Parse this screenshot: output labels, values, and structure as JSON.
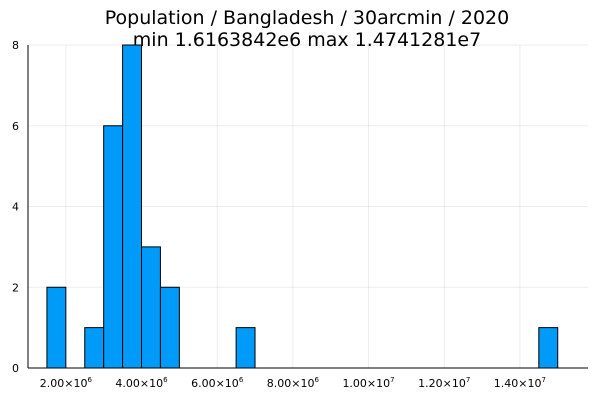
{
  "chart_data": {
    "type": "bar",
    "title_line1": "Population / Bangladesh / 30arcmin / 2020",
    "title_line2": "min 1.6163842e6  max 1.4741281e7",
    "xlabel": "",
    "ylabel": "",
    "bar_color": "#009af9",
    "grid": true,
    "xlim": [
      1000000,
      15800000
    ],
    "ylim": [
      0,
      8
    ],
    "x_ticks": [
      {
        "value": 2000000,
        "mantissa": "2.00",
        "exp": "6"
      },
      {
        "value": 4000000,
        "mantissa": "4.00",
        "exp": "6"
      },
      {
        "value": 6000000,
        "mantissa": "6.00",
        "exp": "6"
      },
      {
        "value": 8000000,
        "mantissa": "8.00",
        "exp": "6"
      },
      {
        "value": 10000000,
        "mantissa": "1.00",
        "exp": "7"
      },
      {
        "value": 12000000,
        "mantissa": "1.20",
        "exp": "7"
      },
      {
        "value": 14000000,
        "mantissa": "1.40",
        "exp": "7"
      }
    ],
    "y_ticks": [
      0,
      2,
      4,
      6,
      8
    ],
    "bin_width": 500000,
    "bins": [
      {
        "start": 1500000,
        "count": 2
      },
      {
        "start": 2500000,
        "count": 1
      },
      {
        "start": 3000000,
        "count": 6
      },
      {
        "start": 3500000,
        "count": 8
      },
      {
        "start": 4000000,
        "count": 3
      },
      {
        "start": 4500000,
        "count": 2
      },
      {
        "start": 6500000,
        "count": 1
      },
      {
        "start": 14500000,
        "count": 1
      }
    ]
  }
}
